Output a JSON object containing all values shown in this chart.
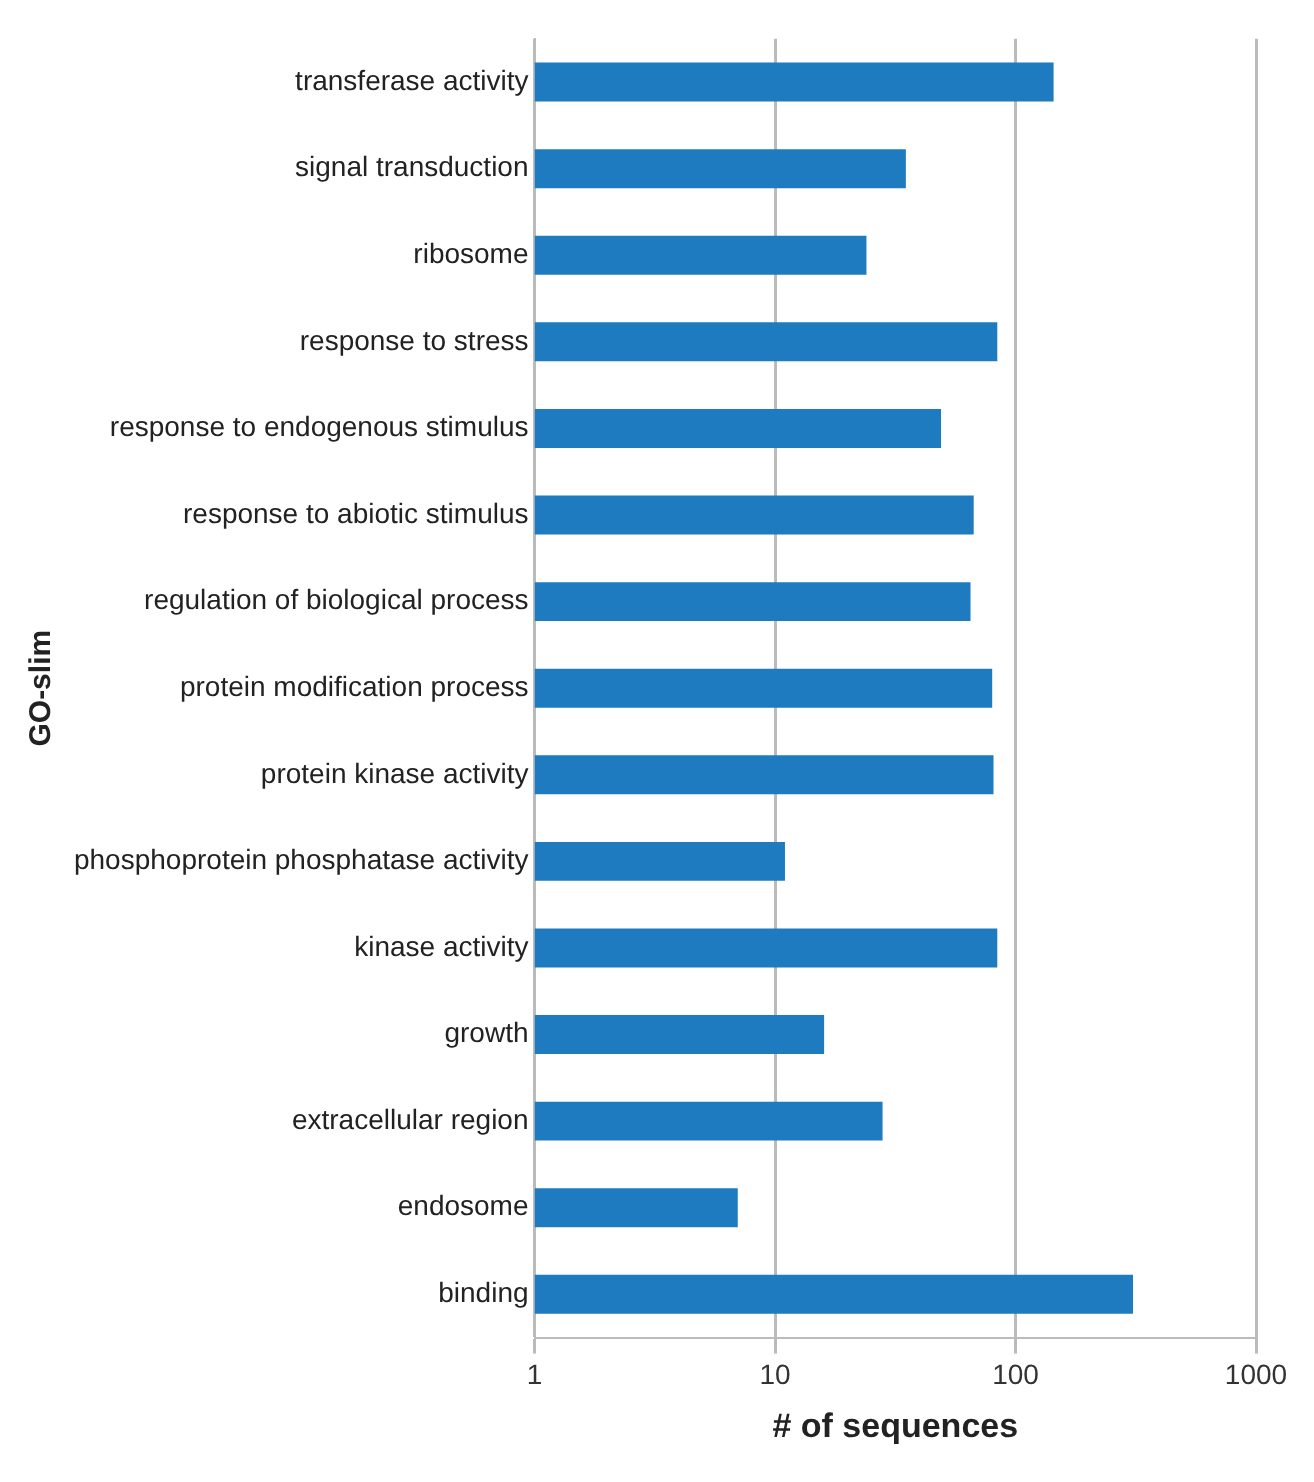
{
  "chart_data": {
    "type": "bar",
    "orientation": "horizontal",
    "xlabel": "# of sequences",
    "ylabel": "GO-slim",
    "categories": [
      "transferase activity",
      "signal transduction",
      "ribosome",
      "response to stress",
      "response to endogenous stimulus",
      "response to abiotic stimulus",
      "regulation of biological process",
      "protein modification process",
      "protein kinase activity",
      "phosphoprotein phosphatase activity",
      "kinase activity",
      "growth",
      "extracellular region",
      "endosome",
      "binding"
    ],
    "values": [
      144,
      35,
      24,
      84,
      49,
      67,
      65,
      80,
      81,
      11,
      84,
      16,
      28,
      7,
      308
    ],
    "color": "#1f7bbf",
    "log": "x",
    "xlim": [
      1,
      1000
    ],
    "xticks": [
      1,
      10,
      100,
      1000
    ],
    "grid": "x",
    "legend": false
  }
}
